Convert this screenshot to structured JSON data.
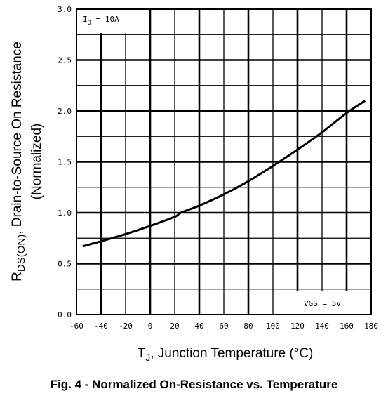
{
  "chart_data": {
    "type": "line",
    "x_ticks": [
      "-60",
      "-40",
      "-20",
      "0",
      "20",
      "40",
      "60",
      "80",
      "100",
      "120",
      "140",
      "160",
      "180"
    ],
    "y_ticks": [
      "0.0",
      "0.5",
      "1.0",
      "1.5",
      "2.0",
      "2.5",
      "3.0"
    ],
    "xlim": [
      -60,
      180
    ],
    "ylim": [
      0,
      3
    ],
    "grid": true,
    "series": [
      {
        "x": [
          -55,
          -40,
          -20,
          0,
          20,
          25,
          40,
          60,
          80,
          100,
          120,
          140,
          160,
          175
        ],
        "y": [
          0.67,
          0.72,
          0.79,
          0.87,
          0.96,
          1.0,
          1.07,
          1.18,
          1.31,
          1.46,
          1.62,
          1.79,
          1.98,
          2.1
        ]
      }
    ],
    "xlabel_main": "T",
    "xlabel_sub": "J",
    "xlabel_rest": ", Junction Temperature (°C)",
    "ylabel_line1_main": "R",
    "ylabel_line1_sub": "DS(ON)",
    "ylabel_line1_rest": ", Drain-to-Source On Resistance",
    "ylabel_line2": "(Normalized)",
    "annotation_top_main": "I",
    "annotation_top_sub": "D",
    "annotation_top_rest": " = 10A",
    "annotation_bottom": "VGS = 5V",
    "caption": "Fig. 4 - Normalized On-Resistance vs. Temperature"
  }
}
